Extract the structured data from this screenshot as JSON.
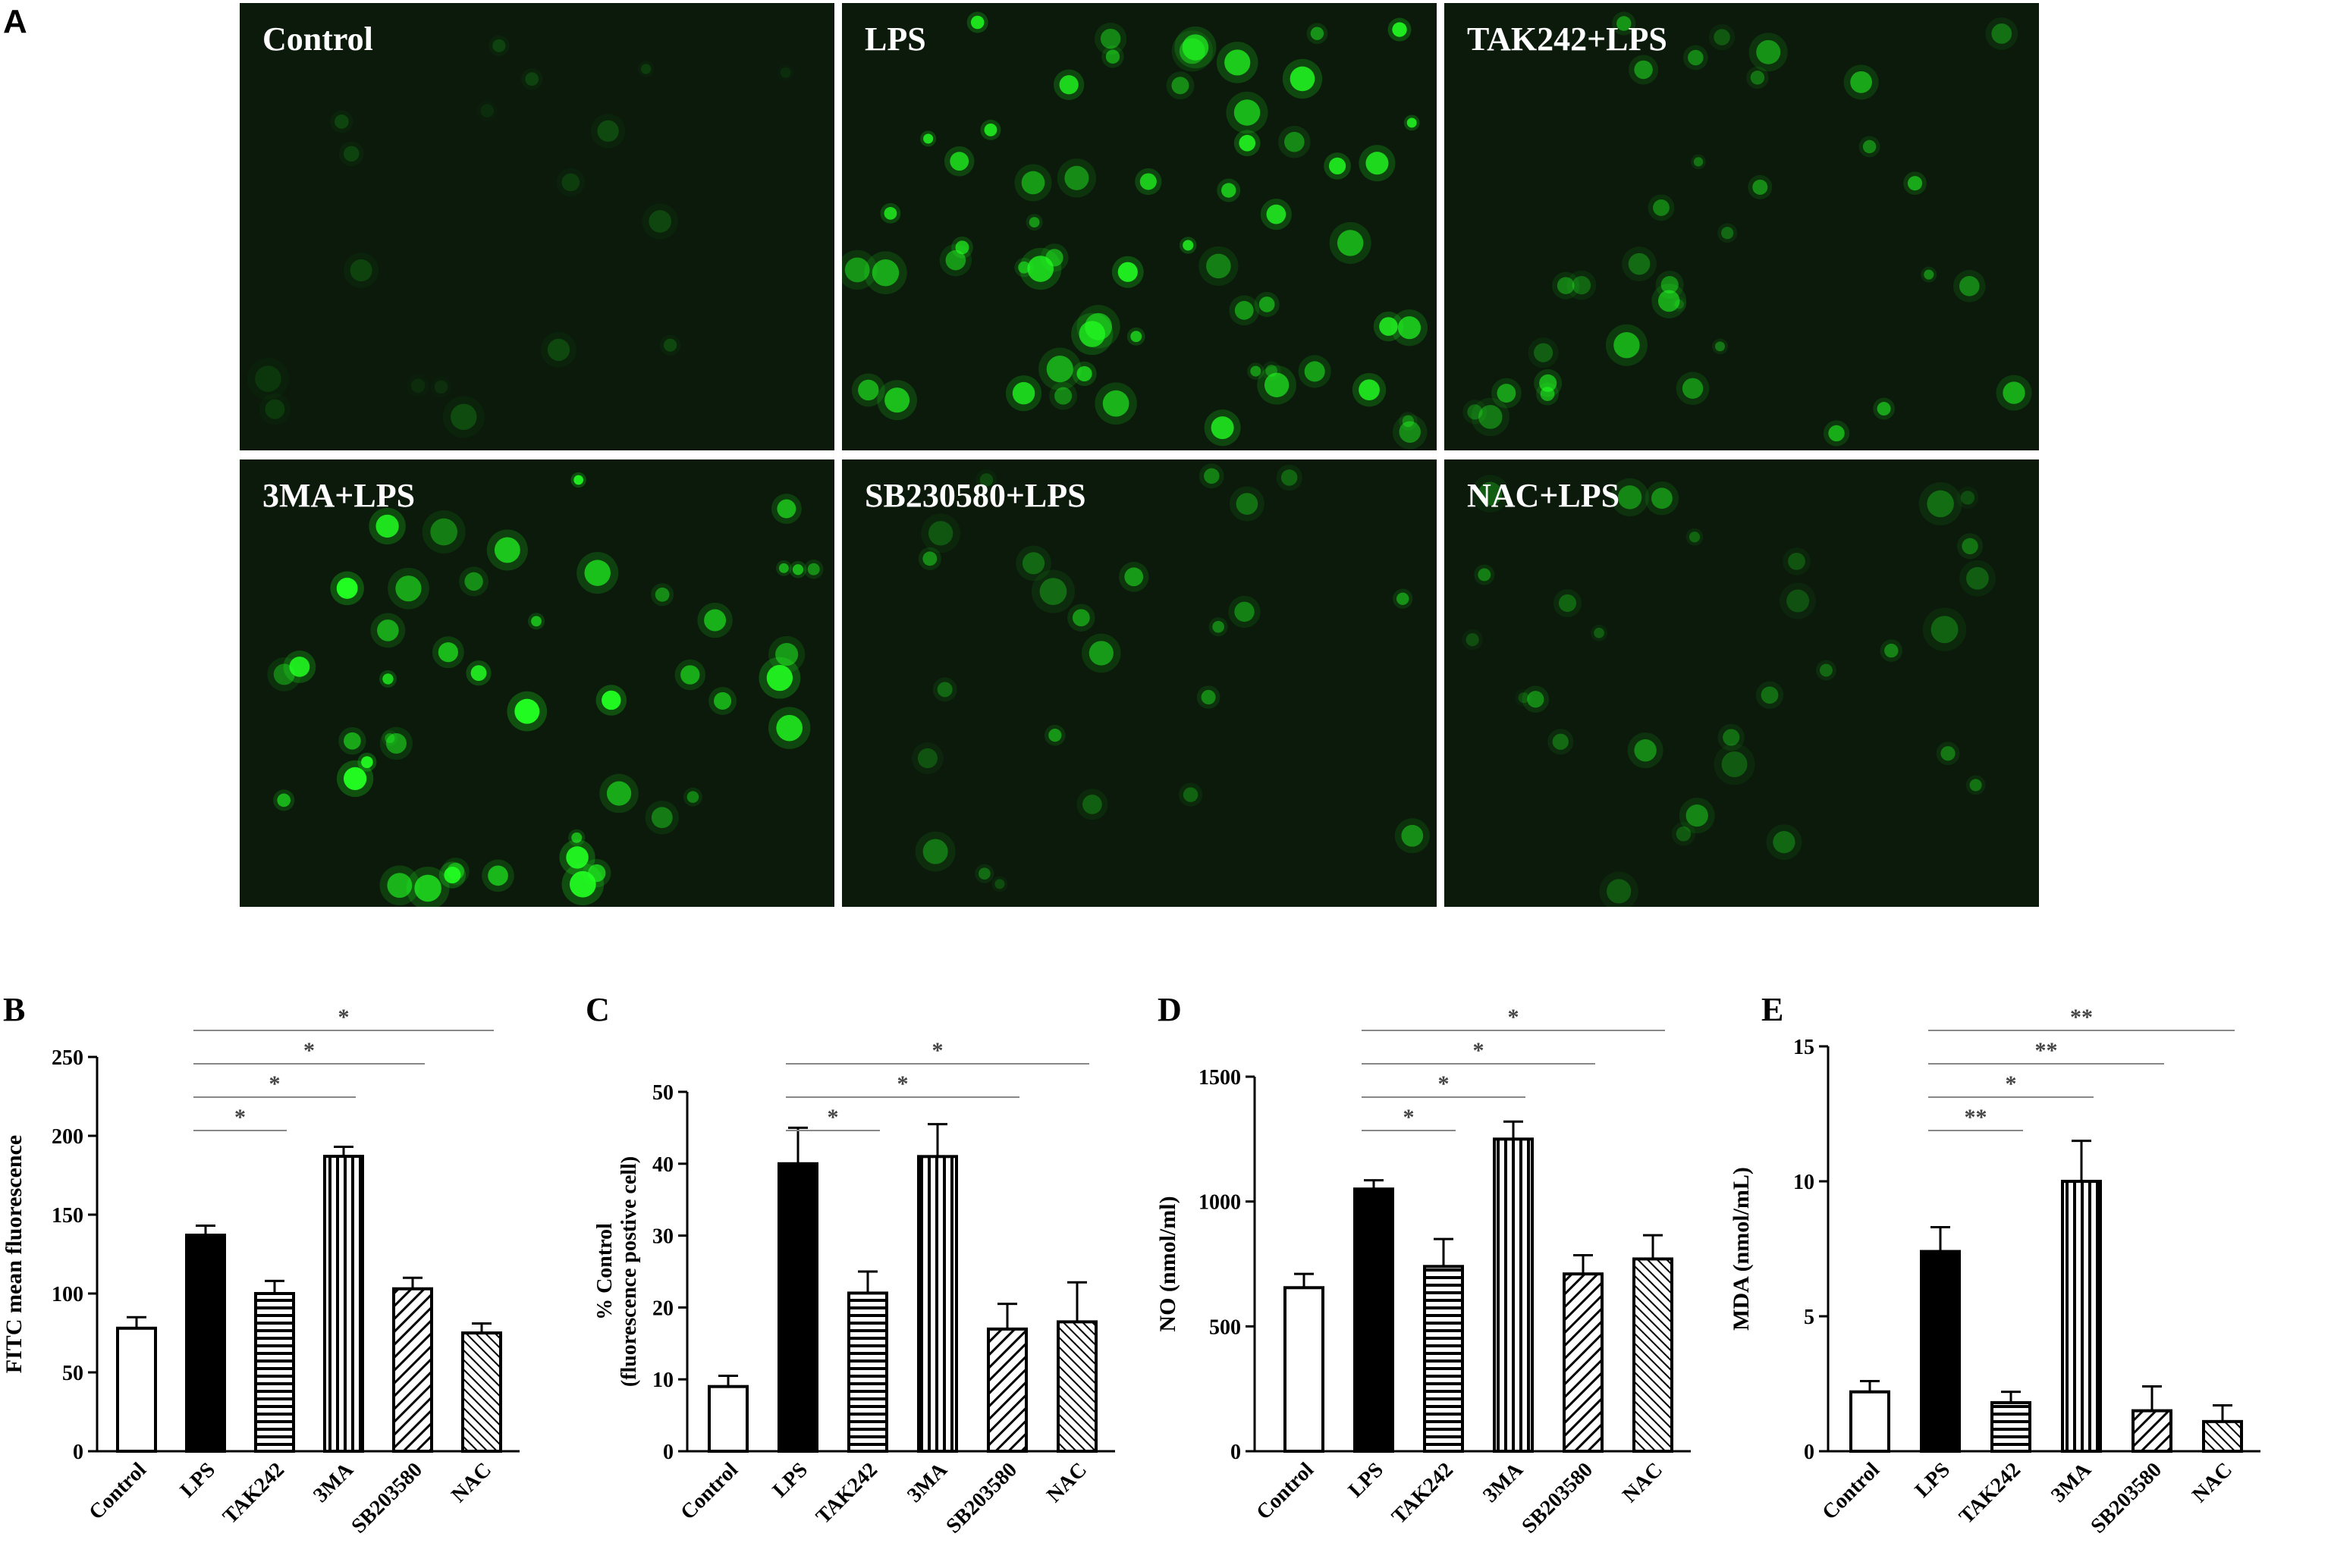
{
  "figure": {
    "panel_a_letter": "A",
    "micrographs": [
      {
        "label": "Control",
        "intensity": 0.18,
        "cells": 18
      },
      {
        "label": "LPS",
        "intensity": 0.9,
        "cells": 60
      },
      {
        "label": "TAK242+LPS",
        "intensity": 0.6,
        "cells": 34
      },
      {
        "label": "3MA+LPS",
        "intensity": 1.0,
        "cells": 46
      },
      {
        "label": "SB230580+LPS",
        "intensity": 0.5,
        "cells": 24
      },
      {
        "label": "NAC+LPS",
        "intensity": 0.45,
        "cells": 30
      }
    ],
    "fluorescence_color": "#22ff22"
  },
  "chart_data": [
    {
      "panel": "B",
      "type": "bar",
      "ylabel": "FITC mean fluorescence",
      "ylim": [
        0,
        250
      ],
      "yticks": [
        0,
        50,
        100,
        150,
        200,
        250
      ],
      "categories": [
        "Control",
        "LPS",
        "TAK242",
        "3MA",
        "SB203580",
        "NAC"
      ],
      "values": [
        78,
        137,
        100,
        187,
        103,
        75
      ],
      "errors": [
        7,
        6,
        8,
        6,
        7,
        6
      ],
      "patterns": [
        "white",
        "black",
        "horizontal",
        "vertical",
        "diagonal",
        "diagonal-dense"
      ],
      "significance": [
        {
          "from": 1,
          "to": 2,
          "label": "*"
        },
        {
          "from": 1,
          "to": 3,
          "label": "*"
        },
        {
          "from": 1,
          "to": 4,
          "label": "*"
        },
        {
          "from": 1,
          "to": 5,
          "label": "*"
        }
      ]
    },
    {
      "panel": "C",
      "type": "bar",
      "ylabel_lines": [
        "% Control",
        "(fluorescence postive cell)"
      ],
      "ylim": [
        0,
        50
      ],
      "yticks": [
        0,
        10,
        20,
        30,
        40,
        50
      ],
      "categories": [
        "Control",
        "LPS",
        "TAK242",
        "3MA",
        "SB203580",
        "NAC"
      ],
      "values": [
        9,
        40,
        22,
        41,
        17,
        18
      ],
      "errors": [
        1.5,
        5,
        3,
        4.5,
        3.5,
        5.5
      ],
      "patterns": [
        "white",
        "black",
        "horizontal",
        "vertical",
        "diagonal",
        "diagonal-dense"
      ],
      "significance": [
        {
          "from": 1,
          "to": 2,
          "label": "*"
        },
        {
          "from": 1,
          "to": 4,
          "label": "*"
        },
        {
          "from": 1,
          "to": 5,
          "label": "*"
        }
      ]
    },
    {
      "panel": "D",
      "type": "bar",
      "ylabel": "NO (nmol/ml)",
      "ylim": [
        0,
        1500
      ],
      "yticks": [
        0,
        500,
        1000,
        1500
      ],
      "categories": [
        "Control",
        "LPS",
        "TAK242",
        "3MA",
        "SB203580",
        "NAC"
      ],
      "values": [
        655,
        1050,
        740,
        1250,
        710,
        770
      ],
      "errors": [
        55,
        35,
        110,
        70,
        75,
        95
      ],
      "patterns": [
        "white",
        "black",
        "horizontal",
        "vertical",
        "diagonal",
        "diagonal-dense"
      ],
      "significance": [
        {
          "from": 1,
          "to": 2,
          "label": "*"
        },
        {
          "from": 1,
          "to": 3,
          "label": "*"
        },
        {
          "from": 1,
          "to": 4,
          "label": "*"
        },
        {
          "from": 1,
          "to": 5,
          "label": "*"
        }
      ]
    },
    {
      "panel": "E",
      "type": "bar",
      "ylabel": "MDA (nmol/mL)",
      "ylim": [
        0,
        15
      ],
      "yticks": [
        0,
        5,
        10,
        15
      ],
      "categories": [
        "Control",
        "LPS",
        "TAK242",
        "3MA",
        "SB203580",
        "NAC"
      ],
      "values": [
        2.2,
        7.4,
        1.8,
        10,
        1.5,
        1.1
      ],
      "errors": [
        0.4,
        0.9,
        0.4,
        1.5,
        0.9,
        0.6
      ],
      "patterns": [
        "white",
        "black",
        "horizontal",
        "vertical",
        "diagonal",
        "diagonal-dense"
      ],
      "significance": [
        {
          "from": 1,
          "to": 2,
          "label": "**"
        },
        {
          "from": 1,
          "to": 3,
          "label": "*"
        },
        {
          "from": 1,
          "to": 4,
          "label": "**"
        },
        {
          "from": 1,
          "to": 5,
          "label": "**"
        }
      ]
    }
  ]
}
